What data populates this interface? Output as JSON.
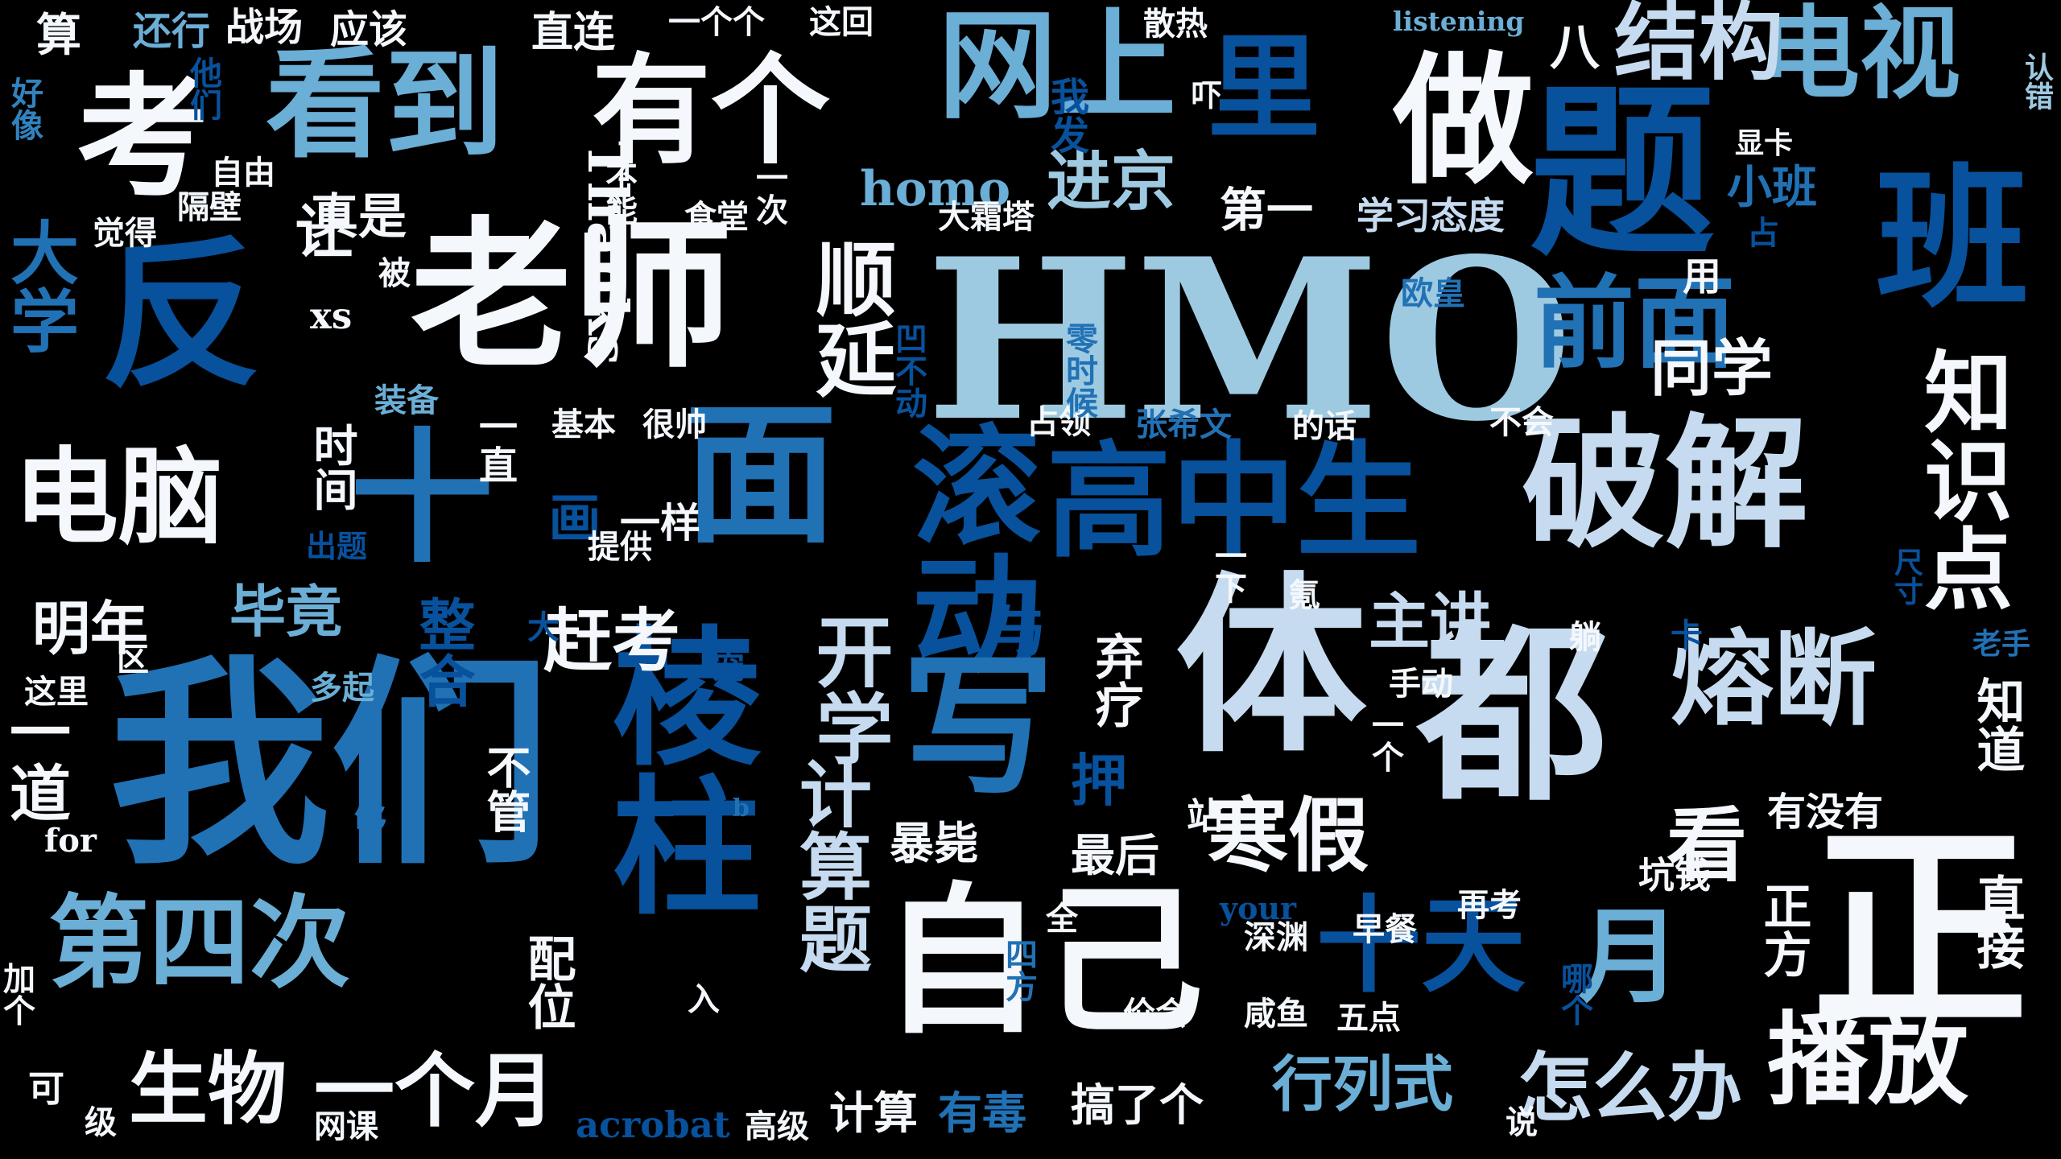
{
  "palette": {
    "background": "#000000",
    "white": "#f4f8fc",
    "pale": "#c6dbef",
    "light": "#9ecae1",
    "mid": "#6baed6",
    "blue": "#3182bd",
    "strong": "#2171b5",
    "deep": "#08519c",
    "navy": "#08306b"
  },
  "words": [
    "HMO",
    "老师",
    "我们",
    "破解",
    "自己",
    "都",
    "体",
    "正",
    "题",
    "班",
    "做",
    "考",
    "反",
    "看到",
    "有个",
    "网上",
    "里",
    "电视",
    "结构",
    "面",
    "十",
    "高中生",
    "滚动",
    "写",
    "棱柱",
    "熔断",
    "电脑",
    "第四次",
    "十天",
    "月",
    "前面",
    "知识点",
    "播放",
    "一个月",
    "生物",
    "寒假",
    "主讲",
    "开学",
    "计算题",
    "怎么办",
    "行列式",
    "进京",
    "顺延",
    "homo",
    "第一",
    "学习态度",
    "小班",
    "同学",
    "赶考",
    "明年",
    "毕竟",
    "整合",
    "画",
    "一道",
    "大学",
    "算",
    "还行",
    "战场",
    "应该",
    "直连",
    "一个个",
    "这回",
    "散热",
    "listening",
    "八",
    "认错",
    "好像",
    "他们",
    "我发",
    "吓",
    "显卡",
    "自由",
    "隔壁",
    "觉得",
    "让",
    "真是",
    "被",
    "Thanks",
    "不能",
    "食堂",
    "一次",
    "大霜塔",
    "xs",
    "时间",
    "装备",
    "一直",
    "基本",
    "很帅",
    "占领",
    "张希文",
    "的话",
    "不会",
    "欧皇",
    "用",
    "占",
    "凹不动",
    "零时候",
    "一样",
    "提供",
    "出题",
    "大",
    "氪",
    "一下",
    "躺",
    "卡",
    "尺寸",
    "老手",
    "知道",
    "直接",
    "正方",
    "有没有",
    "看",
    "手动",
    "一个",
    "押",
    "弃疗",
    "与",
    "宠",
    "b",
    "够",
    "不管",
    "for",
    "这里",
    "区",
    "多起",
    "暴毙",
    "最后",
    "站",
    "坑钱",
    "再考",
    "早餐",
    "your",
    "深渊",
    "全",
    "四方",
    "价会",
    "咸鱼",
    "五点",
    "哪个",
    "配位",
    "入",
    "加个",
    "可",
    "级",
    "网课",
    "acrobat",
    "高级",
    "计算",
    "有毒",
    "搞了个",
    "说"
  ]
}
